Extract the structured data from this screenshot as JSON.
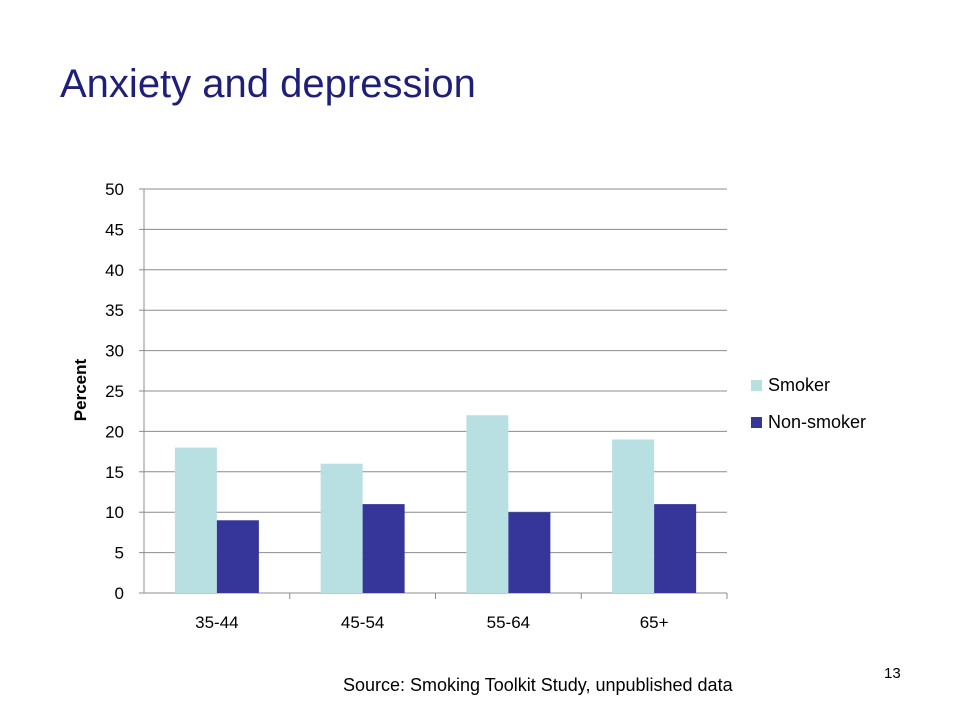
{
  "slide": {
    "title": "Anxiety and depression",
    "source": "Source: Smoking Toolkit Study, unpublished data",
    "page_number": "13"
  },
  "chart_data": {
    "type": "bar",
    "title": "",
    "xlabel": "",
    "ylabel": "Percent",
    "categories": [
      "35-44",
      "45-54",
      "55-64",
      "65+"
    ],
    "series": [
      {
        "name": "Smoker",
        "values": [
          18,
          16,
          22,
          19
        ],
        "color": "#b8e0e3"
      },
      {
        "name": "Non-smoker",
        "values": [
          9,
          11,
          10,
          11
        ],
        "color": "#35359a"
      }
    ],
    "ylim": [
      0,
      50
    ],
    "yticks": [
      0,
      5,
      10,
      15,
      20,
      25,
      30,
      35,
      40,
      45,
      50
    ],
    "grid": true,
    "legend_position": "right"
  }
}
